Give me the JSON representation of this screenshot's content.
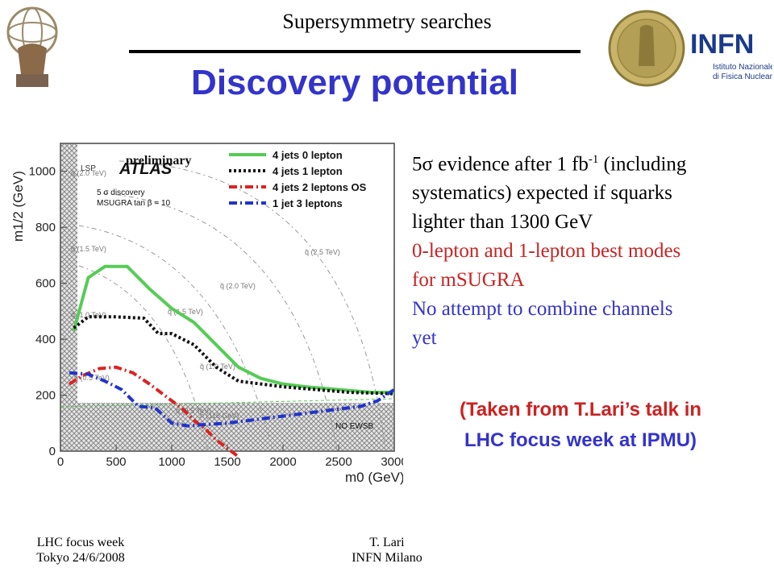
{
  "header": {
    "title": "Supersymmetry searches"
  },
  "slide": {
    "title": "Discovery potential"
  },
  "logos": {
    "left": "ATLAS emblem",
    "right_text": "INFN",
    "right_subtext_1": "Istituto Nazionale",
    "right_subtext_2": "di Fisica Nucleare"
  },
  "bullets": {
    "b1_line1_pre": "5σ evidence after 1 fb",
    "b1_line1_sup": "-1",
    "b1_line1_post": " (including",
    "b1_line2": "systematics)  expected  if squarks",
    "b1_line3": "lighter than 1300 GeV",
    "b2_line1": "0-lepton and 1-lepton best modes",
    "b2_line2": "for mSUGRA",
    "b3_line1": "No attempt to combine channels",
    "b3_line2": "yet"
  },
  "note": {
    "line1": "(Taken from T.Lari’s talk in",
    "line2": "LHC focus week at IPMU)"
  },
  "footer": {
    "left_line1": "LHC focus week",
    "left_line2": "Tokyo 24/6/2008",
    "right_line1": "T. Lari",
    "right_line2": "INFN Milano"
  },
  "colors": {
    "title_blue": "#3333cc",
    "red_text": "#cc2222",
    "curve_green": "#55cc55",
    "curve_red": "#dd2222",
    "curve_blue": "#2233cc"
  },
  "chart_data": {
    "type": "line",
    "xlabel": "m0 (GeV)",
    "ylabel": "m1/2 (GeV)",
    "xlim": [
      0,
      3000
    ],
    "ylim": [
      0,
      1100
    ],
    "x_ticks": [
      "0",
      "500",
      "1000",
      "1500",
      "2000",
      "2500",
      "3000"
    ],
    "y_ticks": [
      "0",
      "200",
      "400",
      "600",
      "800",
      "1000"
    ],
    "overlay_labels": {
      "preliminary": "preliminary",
      "atlas": "ATLAS",
      "lsp": "LSP",
      "no_ewsb": "NO EWSB"
    },
    "annotations": [
      "5 σ discovery",
      "MSUGRA tan β = 10"
    ],
    "contour_labels": [
      "q̃ (2.0 TeV)",
      "q̃ (2.5 TeV)",
      "q̃ (2.0 TeV)",
      "q̃ (1.5 TeV)",
      "q̃ (1.5 TeV)",
      "q̃ (1.0 TeV)",
      "q̃ (1.0 TeV)",
      "q̃ (0.5 TeV)",
      "q̃ (0.5 TeV)",
      "h (118 GeV)"
    ],
    "series": [
      {
        "name": "4 jets 0 lepton",
        "color": "#55cc55",
        "style": "solid",
        "x": [
          120,
          250,
          400,
          600,
          800,
          1000,
          1200,
          1400,
          1600,
          1800,
          2000,
          2200,
          2500,
          2800,
          3000
        ],
        "y": [
          430,
          620,
          660,
          660,
          580,
          510,
          460,
          380,
          300,
          260,
          240,
          230,
          220,
          210,
          210
        ]
      },
      {
        "name": "4 jets 1 lepton",
        "color": "#111111",
        "style": "dotted",
        "x": [
          120,
          250,
          500,
          750,
          880,
          1000,
          1200,
          1400,
          1600,
          1800,
          2000,
          2300,
          2600,
          3000
        ],
        "y": [
          440,
          480,
          480,
          475,
          420,
          420,
          380,
          300,
          250,
          240,
          230,
          220,
          210,
          205
        ]
      },
      {
        "name": "4 jets 2 leptons OS",
        "color": "#dd2222",
        "style": "dashdot",
        "x": [
          80,
          200,
          350,
          500,
          650,
          800,
          900,
          1000,
          1100,
          1200,
          1300,
          1400,
          1500,
          1600
        ],
        "y": [
          240,
          270,
          295,
          300,
          280,
          240,
          210,
          180,
          150,
          110,
          80,
          40,
          10,
          -20
        ]
      },
      {
        "name": "1 jet 3 leptons",
        "color": "#2233cc",
        "style": "dashdot",
        "x": [
          80,
          250,
          400,
          550,
          700,
          850,
          1000,
          1150,
          1300,
          1500,
          1700,
          1900,
          2100,
          2300,
          2500,
          2700,
          2850,
          3000
        ],
        "y": [
          280,
          275,
          250,
          220,
          160,
          155,
          100,
          90,
          95,
          100,
          110,
          120,
          130,
          140,
          150,
          160,
          180,
          220
        ]
      }
    ]
  }
}
